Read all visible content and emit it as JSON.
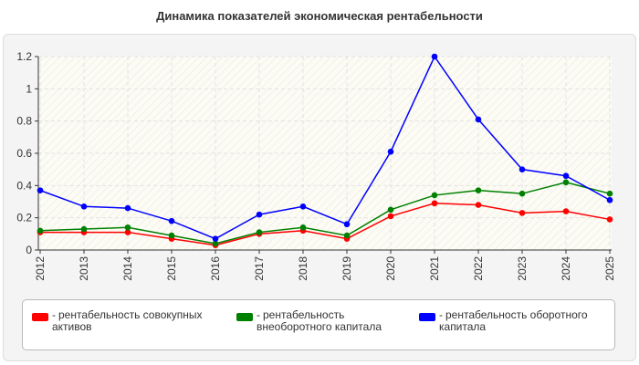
{
  "chart_data": {
    "type": "line",
    "title": "Динамика показателей экономическая рентабельности",
    "categories": [
      "2012",
      "2013",
      "2014",
      "2015",
      "2016",
      "2017",
      "2018",
      "2019",
      "2020",
      "2021",
      "2022",
      "2023",
      "2024",
      "2025"
    ],
    "series": [
      {
        "name": "рентабельность совокупных активов",
        "color": "#ff0000",
        "values": [
          0.11,
          0.11,
          0.11,
          0.07,
          0.03,
          0.1,
          0.12,
          0.07,
          0.21,
          0.29,
          0.28,
          0.23,
          0.24,
          0.19
        ]
      },
      {
        "name": "рентабельность внеоборотного капитала",
        "color": "#008000",
        "values": [
          0.12,
          0.13,
          0.14,
          0.09,
          0.04,
          0.11,
          0.14,
          0.09,
          0.25,
          0.34,
          0.37,
          0.35,
          0.42,
          0.35
        ]
      },
      {
        "name": "рентабельность оборотного капитала",
        "color": "#0000ff",
        "values": [
          0.37,
          0.27,
          0.26,
          0.18,
          0.07,
          0.22,
          0.27,
          0.16,
          0.61,
          1.2,
          0.81,
          0.5,
          0.46,
          0.31
        ]
      }
    ],
    "y_ticks": [
      "0",
      "0.2",
      "0.4",
      "0.6",
      "0.8",
      "1",
      "1.2"
    ],
    "ylim": [
      0,
      1.2
    ],
    "grid": true,
    "legend_position": "bottom",
    "legend_prefix": "-"
  }
}
